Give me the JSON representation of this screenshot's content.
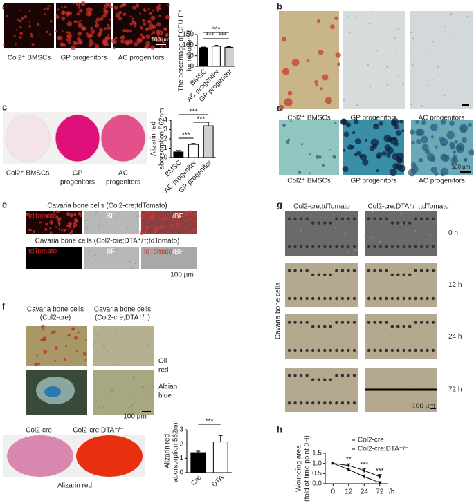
{
  "panels": {
    "a": {
      "label": "a",
      "captions": [
        "Col2⁺ BMSCs",
        "GP progenitors",
        "AC progenitors"
      ],
      "scale": "100 µm"
    },
    "b": {
      "label": "b",
      "captions": [
        "Col2⁺ BMSCs",
        "GP progenitors",
        "AC progenitors"
      ]
    },
    "c": {
      "label": "c",
      "captions": [
        [
          "Col2⁺ BMSCs"
        ],
        [
          "GP",
          "progenitors"
        ],
        [
          "AC",
          "progenitors"
        ]
      ]
    },
    "d": {
      "label": "d",
      "captions": [
        "Col2⁺ BMSCs",
        "GP progenitors",
        "AC progenitors"
      ],
      "scale": "100 µm"
    },
    "e": {
      "label": "e",
      "rows": [
        {
          "title": "Cavaria bone cells (Col2-cre;tdTomato)",
          "channels": [
            "tdTomato",
            "BF"
          ],
          "merge": [
            "tdTomato",
            "/BF"
          ]
        },
        {
          "title": "Cavaria bone cells (Col2-cre;DTA⁺/⁻;tdTomato)",
          "channels": [
            "tdTomato",
            "BF"
          ],
          "merge": [
            "tdTomato",
            "/BF"
          ]
        }
      ],
      "scale": "100 µm"
    },
    "f": {
      "label": "f",
      "columns": [
        [
          "Cavaria bone cells",
          "(Col2-cre)"
        ],
        [
          "Cavaria bone cells",
          "(Col2-cre;DTA⁺/⁻)"
        ]
      ],
      "stains": [
        [
          "Oil",
          "red"
        ],
        [
          "Alcian",
          "blue"
        ]
      ],
      "scale": "100 µm",
      "dish_labels": [
        "Col2-cre",
        "Col2-cre;DTA⁺/⁻"
      ],
      "dish_caption": "Alizarin red"
    },
    "g": {
      "label": "g",
      "columns": [
        "Col2-cre;tdTomato",
        "Col2-cre;DTA⁺/⁻;tdTomato"
      ],
      "times": [
        "0 h",
        "12 h",
        "24 h",
        "72 h"
      ],
      "side_label": "Cavaria bone cells",
      "scale": "100 µm"
    },
    "h": {
      "label": "h"
    }
  },
  "chart_data": [
    {
      "type": "bar",
      "ylabel": [
        "The percentage of CFU-F⁺",
        "for reporter/%"
      ],
      "categories": [
        "BMSC",
        "AC progenitor",
        "GP progenitor"
      ],
      "values": [
        88,
        95,
        90
      ],
      "errors": [
        3,
        4,
        3
      ],
      "colors": [
        "#000000",
        "#ffffff",
        "#d0d0d0"
      ],
      "ylim": [
        0,
        150
      ],
      "yticks": [
        0,
        50,
        100,
        150
      ],
      "annotations": [
        "***",
        "***",
        "***"
      ]
    },
    {
      "type": "bar",
      "ylabel": [
        "Alizarin red",
        "aborsorption 562nm"
      ],
      "categories": [
        "BMSC",
        "AC progenitor",
        "GP progenitor"
      ],
      "values": [
        0.6,
        1.4,
        3.4
      ],
      "errors": [
        0.15,
        0.1,
        0.4
      ],
      "colors": [
        "#000000",
        "#ffffff",
        "#d0d0d0"
      ],
      "ylim": [
        0,
        4
      ],
      "yticks": [
        0,
        1,
        2,
        3,
        4
      ],
      "annotations": [
        "***",
        "***",
        "***"
      ]
    },
    {
      "type": "bar",
      "ylabel": [
        "Alizarin red",
        "aborsorption 562nm"
      ],
      "categories": [
        "Cre",
        "DTA"
      ],
      "values": [
        1.4,
        2.15
      ],
      "errors": [
        0.1,
        0.45
      ],
      "colors": [
        "#000000",
        "#ffffff"
      ],
      "ylim": [
        0,
        3
      ],
      "yticks": [
        0,
        1,
        2,
        3
      ],
      "annotations": [
        "***"
      ]
    },
    {
      "type": "line",
      "ylabel": [
        "Wounding area",
        "(fold of time point 0H)"
      ],
      "categories": [
        "0",
        "12",
        "24",
        "72"
      ],
      "xlabel": "/h",
      "series": [
        {
          "name": "Col2-cre",
          "color": "#000000",
          "values": [
            1.0,
            0.7,
            0.35,
            0.05
          ],
          "errors": [
            0,
            0.06,
            0.08,
            0.05
          ]
        },
        {
          "name": "Col2-cre;DTA⁺/⁻",
          "color": "#000000",
          "values": [
            1.0,
            0.9,
            0.65,
            0.35
          ],
          "errors": [
            0,
            0.08,
            0.1,
            0.1
          ]
        }
      ],
      "ylim": [
        0,
        1.5
      ],
      "yticks": [
        {
          "value": 0,
          "label": "0.0"
        },
        0.5,
        {
          "value": 1,
          "label": "1.0"
        },
        1.5
      ],
      "annotations": [
        "**",
        "***",
        "***"
      ]
    }
  ]
}
